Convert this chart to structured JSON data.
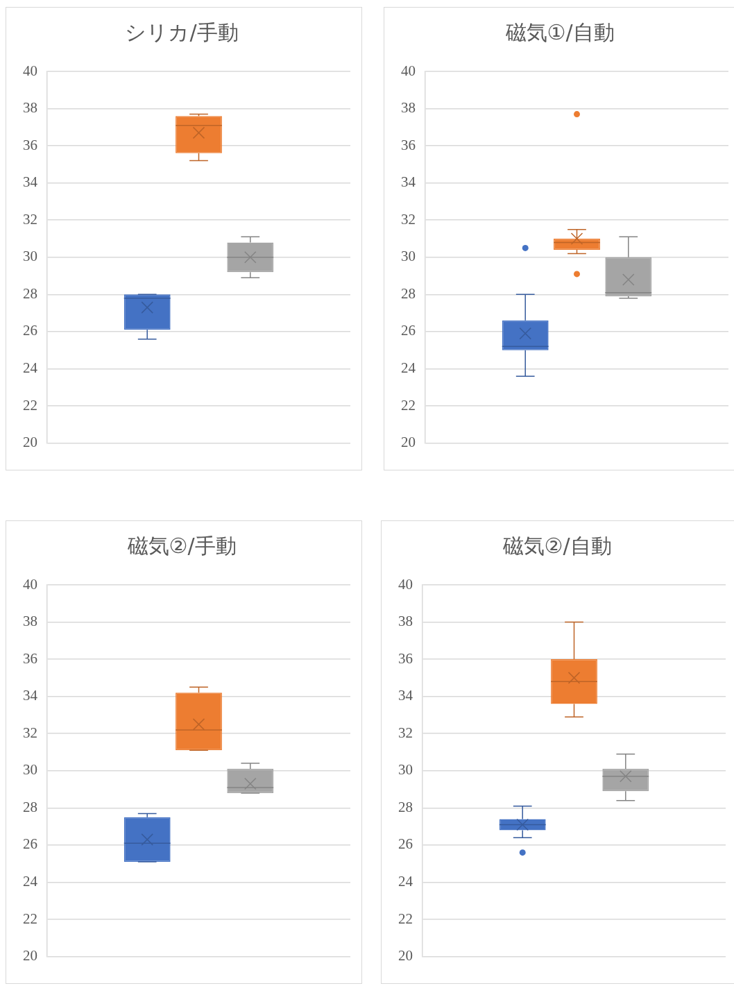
{
  "chart_data": [
    {
      "type": "box",
      "title": "シリカ/手動",
      "categories": [
        null
      ],
      "ylim": [
        20,
        40
      ],
      "yticks": [
        20,
        22,
        24,
        26,
        28,
        30,
        32,
        34,
        36,
        38,
        40
      ],
      "grid": "y",
      "series": [
        {
          "color": "#4472c4",
          "boxes": [
            {
              "low": 25.6,
              "q1": 26.1,
              "median": 27.8,
              "q3": 28.0,
              "high": 28.0,
              "mean": 27.3
            }
          ]
        },
        {
          "color": "#ed7d31",
          "boxes": [
            {
              "low": 35.2,
              "q1": 35.6,
              "median": 37.1,
              "q3": 37.6,
              "high": 37.7,
              "mean": 36.7
            }
          ]
        },
        {
          "color": "#a5a5a5",
          "boxes": [
            {
              "low": 28.9,
              "q1": 29.2,
              "median": 30.0,
              "q3": 30.8,
              "high": 31.1,
              "mean": 30.0
            }
          ]
        }
      ]
    },
    {
      "type": "box",
      "title": "磁気①/自動",
      "categories": [
        null
      ],
      "ylim": [
        20,
        40
      ],
      "yticks": [
        20,
        22,
        24,
        26,
        28,
        30,
        32,
        34,
        36,
        38,
        40
      ],
      "grid": "y",
      "series": [
        {
          "color": "#4472c4",
          "boxes": [
            {
              "low": 23.6,
              "q1": 25.0,
              "median": 25.2,
              "q3": 26.6,
              "high": 28.0,
              "mean": 25.9,
              "outliers": [
                30.5
              ]
            }
          ]
        },
        {
          "color": "#ed7d31",
          "boxes": [
            {
              "low": 30.2,
              "q1": 30.4,
              "median": 30.8,
              "q3": 31.0,
              "high": 31.5,
              "mean": 31.0,
              "outliers": [
                37.7,
                29.1
              ]
            }
          ]
        },
        {
          "color": "#a5a5a5",
          "boxes": [
            {
              "low": 27.8,
              "q1": 27.9,
              "median": 28.1,
              "q3": 30.0,
              "high": 31.1,
              "mean": 28.8
            }
          ]
        }
      ]
    },
    {
      "type": "box",
      "title": "磁気②/手動",
      "categories": [
        null
      ],
      "ylim": [
        20,
        40
      ],
      "yticks": [
        20,
        22,
        24,
        26,
        28,
        30,
        32,
        34,
        36,
        38,
        40
      ],
      "grid": "y",
      "series": [
        {
          "color": "#4472c4",
          "boxes": [
            {
              "low": 25.1,
              "q1": 25.1,
              "median": 26.1,
              "q3": 27.5,
              "high": 27.7,
              "mean": 26.3
            }
          ]
        },
        {
          "color": "#ed7d31",
          "boxes": [
            {
              "low": 31.1,
              "q1": 31.1,
              "median": 32.2,
              "q3": 34.2,
              "high": 34.5,
              "mean": 32.5
            }
          ]
        },
        {
          "color": "#a5a5a5",
          "boxes": [
            {
              "low": 28.8,
              "q1": 28.8,
              "median": 29.1,
              "q3": 30.1,
              "high": 30.4,
              "mean": 29.3
            }
          ]
        }
      ]
    },
    {
      "type": "box",
      "title": "磁気②/自動",
      "categories": [
        null
      ],
      "ylim": [
        20,
        40
      ],
      "yticks": [
        20,
        22,
        24,
        26,
        28,
        30,
        32,
        34,
        36,
        38,
        40
      ],
      "grid": "y",
      "series": [
        {
          "color": "#4472c4",
          "boxes": [
            {
              "low": 26.4,
              "q1": 26.8,
              "median": 27.1,
              "q3": 27.4,
              "high": 28.1,
              "mean": 27.1,
              "outliers": [
                25.6
              ]
            }
          ]
        },
        {
          "color": "#ed7d31",
          "boxes": [
            {
              "low": 32.9,
              "q1": 33.6,
              "median": 34.8,
              "q3": 36.0,
              "high": 38.0,
              "mean": 35.0
            }
          ]
        },
        {
          "color": "#a5a5a5",
          "boxes": [
            {
              "low": 28.4,
              "q1": 28.9,
              "median": 29.7,
              "q3": 30.1,
              "high": 30.9,
              "mean": 29.7
            }
          ]
        }
      ]
    }
  ]
}
